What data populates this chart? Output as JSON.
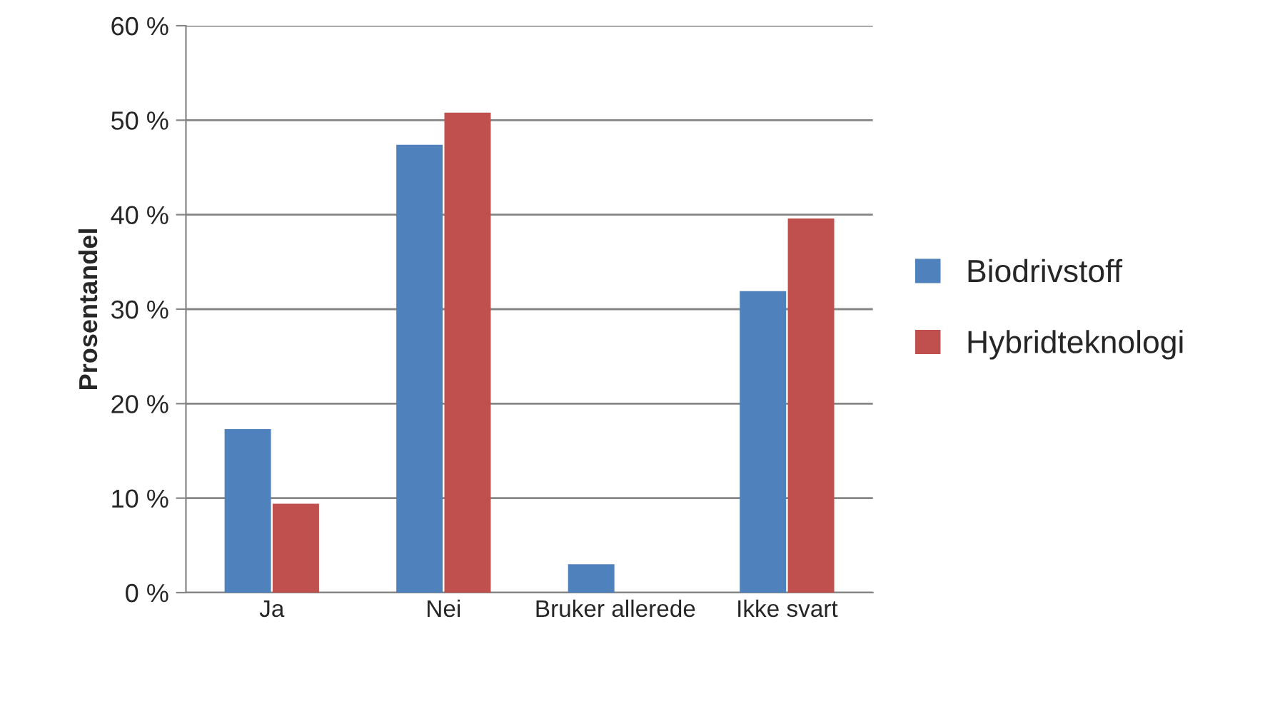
{
  "chart_data": {
    "type": "bar",
    "ylabel": "Prosentandel",
    "categories": [
      "Ja",
      "Nei",
      "Bruker allerede",
      "Ikke svart"
    ],
    "series": [
      {
        "name": "Biodrivstoff",
        "color": "#4f81bd",
        "values": [
          17.3,
          47.4,
          3.0,
          31.9
        ]
      },
      {
        "name": "Hybridteknologi",
        "color": "#c0504d",
        "values": [
          9.4,
          50.8,
          null,
          39.6
        ]
      }
    ],
    "ylim": [
      0,
      60
    ],
    "yticks": [
      {
        "value": 0,
        "label": "0 %"
      },
      {
        "value": 10,
        "label": "10 %"
      },
      {
        "value": 20,
        "label": "20 %"
      },
      {
        "value": 30,
        "label": "30 %"
      },
      {
        "value": 40,
        "label": "40 %"
      },
      {
        "value": 50,
        "label": "50 %"
      },
      {
        "value": 60,
        "label": "60 %"
      }
    ],
    "grid": "y",
    "legend": "right"
  }
}
